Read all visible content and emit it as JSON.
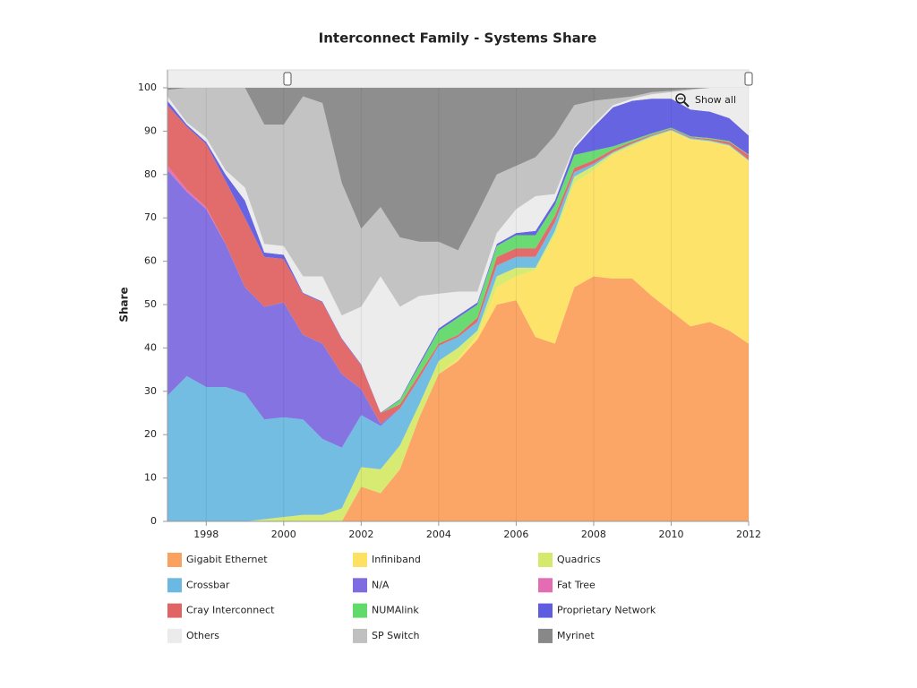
{
  "chart_data": {
    "type": "stacked_area",
    "title": "Interconnect Family - Systems Share",
    "y_label": "Share",
    "reset_zoom_label": "Show all",
    "x": [
      1997,
      1997.5,
      1998,
      1998.5,
      1999,
      1999.5,
      2000,
      2000.5,
      2001,
      2001.5,
      2002,
      2002.5,
      2003,
      2003.5,
      2004,
      2004.5,
      2005,
      2005.5,
      2006,
      2006.5,
      2007,
      2007.5,
      2008,
      2008.5,
      2009,
      2009.5,
      2010,
      2010.5,
      2011,
      2011.5,
      2012
    ],
    "xlim": [
      1997,
      2012
    ],
    "xticks": [
      1998,
      2000,
      2002,
      2004,
      2006,
      2008,
      2010,
      2012
    ],
    "ylim": [
      0,
      100
    ],
    "yticks": [
      0,
      10,
      20,
      30,
      40,
      50,
      60,
      70,
      80,
      90,
      100
    ],
    "grid": true,
    "series": [
      {
        "name": "Gigabit Ethernet",
        "color": "#fba15f",
        "values": [
          0,
          0,
          0,
          0,
          0,
          0,
          0,
          0,
          0,
          0,
          8,
          6.5,
          12,
          24,
          34,
          37,
          42,
          50,
          51,
          42.5,
          41,
          54,
          56.5,
          56,
          56,
          52,
          48.5,
          45,
          46,
          44,
          41
        ]
      },
      {
        "name": "Infiniband",
        "color": "#fde162",
        "values": [
          0,
          0,
          0,
          0,
          0,
          0,
          0,
          0,
          0,
          0,
          0,
          0,
          0,
          0,
          0,
          0.5,
          1,
          4,
          5.5,
          15.5,
          25,
          24,
          24.5,
          28.5,
          30.5,
          36.5,
          41.5,
          43,
          41.5,
          42.5,
          42
        ]
      },
      {
        "name": "Quadrics",
        "color": "#d5ea6c",
        "values": [
          0,
          0,
          0,
          0,
          0,
          0.5,
          1,
          1.5,
          1.5,
          3,
          4.5,
          5.5,
          5.5,
          3,
          3,
          2.5,
          1,
          2.5,
          2,
          0.5,
          1,
          1.5,
          1,
          0.5,
          0.5,
          0.3,
          0.2,
          0.2,
          0.2,
          0.2,
          0.2
        ]
      },
      {
        "name": "Crossbar",
        "color": "#6bb9e2",
        "values": [
          29,
          33.5,
          31,
          31,
          29.5,
          23,
          23,
          22,
          17.5,
          14,
          12,
          10,
          8.5,
          6,
          3.5,
          2.5,
          2,
          2.5,
          2.5,
          2.5,
          2,
          1,
          0.5,
          0.2,
          0.2,
          0.2,
          0.2,
          0.2,
          0.2,
          0.2,
          0.2
        ]
      },
      {
        "name": "N/A",
        "color": "#7e6ce0",
        "values": [
          52,
          42.5,
          41,
          33,
          24.5,
          26,
          26.5,
          19.5,
          22,
          17,
          6,
          0.5,
          0,
          0,
          0,
          0,
          0,
          0,
          0,
          0,
          0,
          0,
          0,
          0,
          0,
          0,
          0,
          0,
          0,
          0,
          0
        ]
      },
      {
        "name": "Fat Tree",
        "color": "#e46cb2",
        "values": [
          1,
          0.5,
          0.5,
          0,
          0,
          0,
          0,
          0,
          0,
          0,
          0,
          0,
          0,
          0,
          0,
          0,
          0,
          0,
          0,
          0,
          0,
          0,
          0,
          0,
          0,
          0,
          0,
          0,
          0,
          0,
          0
        ]
      },
      {
        "name": "Cray Interconnect",
        "color": "#e06464",
        "values": [
          14,
          14.5,
          14.5,
          14.5,
          16,
          11.5,
          10,
          9.5,
          9.5,
          8,
          5.5,
          2.5,
          1,
          1,
          0.5,
          0.5,
          1,
          2,
          2,
          2,
          1.5,
          1,
          0.8,
          0.6,
          0.4,
          0.2,
          0.2,
          0.2,
          0.3,
          0.6,
          1.1
        ]
      },
      {
        "name": "NUMAlink",
        "color": "#62d96b",
        "values": [
          0,
          0,
          0,
          0,
          0,
          0,
          0,
          0,
          0,
          0,
          0,
          0,
          1,
          2,
          3,
          4,
          3,
          2.5,
          3,
          3,
          2.5,
          3,
          2.2,
          0.7,
          0.4,
          0.3,
          0.2,
          0.2,
          0.2,
          0.2,
          0.1
        ]
      },
      {
        "name": "Proprietary Network",
        "color": "#5f5ce0",
        "values": [
          1,
          0.5,
          0.5,
          1.5,
          4,
          1,
          1,
          0.2,
          0.2,
          0.2,
          0.2,
          0.1,
          0.2,
          0.5,
          0.5,
          0.5,
          0.5,
          0.5,
          0.5,
          1,
          1,
          1.5,
          5.5,
          9,
          9,
          8,
          6.7,
          6.2,
          6.1,
          5.3,
          4.4
        ]
      },
      {
        "name": "Others",
        "color": "#ebebeb",
        "values": [
          1,
          0.5,
          1,
          1,
          3,
          2,
          2,
          3.8,
          5.8,
          5.3,
          13.3,
          31.4,
          21.3,
          15.5,
          8,
          5.5,
          2.5,
          2.5,
          5.5,
          8,
          1.5,
          0.5,
          0.5,
          0.5,
          0.5,
          1,
          1.5,
          4.5,
          5.5,
          7,
          11
        ]
      },
      {
        "name": "SP Switch",
        "color": "#c0c0c0",
        "values": [
          1.5,
          8,
          11.5,
          19,
          23,
          27.5,
          28,
          41.5,
          40,
          30.5,
          18,
          16,
          16,
          12.5,
          12,
          9.5,
          18,
          13.5,
          10,
          9,
          13.5,
          9.5,
          5.5,
          1.5,
          0.5,
          0.5,
          0.3,
          0.2,
          0,
          0,
          0
        ]
      },
      {
        "name": "Myrinet",
        "color": "#888888",
        "values": [
          0.5,
          0,
          0,
          0,
          0,
          8.5,
          8.5,
          2,
          3.5,
          22,
          32.5,
          27.5,
          34.5,
          35.5,
          35.5,
          37.5,
          29,
          20,
          18,
          16,
          11,
          4,
          3,
          2.5,
          2,
          1,
          0.7,
          0.3,
          0,
          0,
          0
        ]
      }
    ]
  }
}
